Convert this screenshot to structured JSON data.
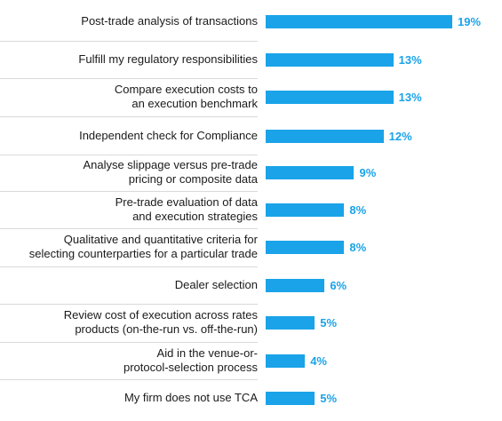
{
  "chart_data": {
    "type": "bar",
    "orientation": "horizontal",
    "categories": [
      "Post-trade analysis of transactions",
      "Fulfill my regulatory responsibilities",
      "Compare execution costs to\nan execution benchmark",
      "Independent check for Compliance",
      "Analyse slippage versus pre-trade\npricing or composite data",
      "Pre-trade evaluation of data\nand execution strategies",
      "Qualitative and quantitative criteria for\nselecting counterparties for a particular trade",
      "Dealer selection",
      "Review cost of execution across rates\nproducts (on-the-run vs. off-the-run)",
      "Aid in the venue-or-\nprotocol-selection process",
      "My firm does not use TCA"
    ],
    "values": [
      19,
      13,
      13,
      12,
      9,
      8,
      8,
      6,
      5,
      4,
      5
    ],
    "value_labels": [
      "19%",
      "13%",
      "13%",
      "12%",
      "9%",
      "8%",
      "8%",
      "6%",
      "5%",
      "4%",
      "5%"
    ],
    "xlim": [
      0,
      19
    ],
    "grid": false,
    "bar_color": "#1aa3e8",
    "label_color": "#1aa3e8"
  }
}
